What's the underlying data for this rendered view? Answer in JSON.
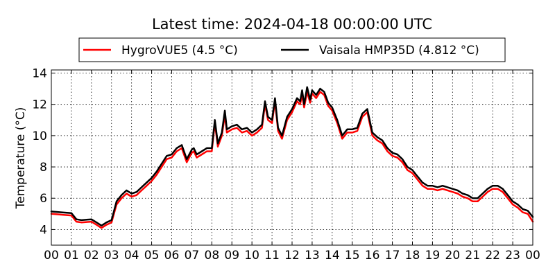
{
  "chart_data": {
    "type": "line",
    "title": "Latest time: 2024-04-18 00:00:00 UTC",
    "xlabel": "",
    "ylabel": "Temperature (°C)",
    "xlim": [
      0,
      24
    ],
    "ylim": [
      3,
      14.2
    ],
    "grid": true,
    "legend_position": "top-center",
    "x_tick_values": [
      0,
      1,
      2,
      3,
      4,
      5,
      6,
      7,
      8,
      9,
      10,
      11,
      12,
      13,
      14,
      15,
      16,
      17,
      18,
      19,
      20,
      21,
      22,
      23,
      24
    ],
    "x_tick_labels": [
      "00",
      "01",
      "02",
      "03",
      "04",
      "05",
      "06",
      "07",
      "08",
      "09",
      "10",
      "11",
      "12",
      "13",
      "14",
      "15",
      "16",
      "17",
      "18",
      "19",
      "20",
      "21",
      "22",
      "23",
      "00"
    ],
    "y_tick_values": [
      4,
      6,
      8,
      10,
      12,
      14
    ],
    "y_tick_labels": [
      "4",
      "6",
      "8",
      "10",
      "12",
      "14"
    ],
    "x": [
      0,
      0.5,
      1,
      1.25,
      1.5,
      2,
      2.25,
      2.5,
      2.75,
      3,
      3.25,
      3.5,
      3.75,
      4,
      4.25,
      4.5,
      4.75,
      5,
      5.25,
      5.5,
      5.75,
      6,
      6.25,
      6.5,
      6.75,
      7,
      7.1,
      7.25,
      7.5,
      7.75,
      8,
      8.15,
      8.3,
      8.5,
      8.65,
      8.75,
      9,
      9.25,
      9.5,
      9.75,
      10,
      10.25,
      10.5,
      10.65,
      10.8,
      11,
      11.15,
      11.3,
      11.5,
      11.75,
      12,
      12.25,
      12.4,
      12.5,
      12.6,
      12.75,
      12.9,
      13,
      13.2,
      13.4,
      13.6,
      13.8,
      14,
      14.25,
      14.5,
      14.75,
      15,
      15.25,
      15.5,
      15.75,
      16,
      16.25,
      16.5,
      16.75,
      17,
      17.25,
      17.5,
      17.75,
      18,
      18.25,
      18.5,
      18.75,
      19,
      19.25,
      19.5,
      19.75,
      20,
      20.25,
      20.5,
      20.75,
      21,
      21.25,
      21.5,
      21.75,
      22,
      22.25,
      22.5,
      22.75,
      23,
      23.25,
      23.5,
      23.75,
      24
    ],
    "series": [
      {
        "name": "HygroVUE5 (4.5 °C)",
        "color": "#ff0000",
        "values": [
          5.0,
          4.95,
          4.9,
          4.5,
          4.45,
          4.5,
          4.3,
          4.1,
          4.3,
          4.45,
          5.6,
          6.0,
          6.3,
          6.1,
          6.2,
          6.5,
          6.8,
          7.1,
          7.5,
          8.0,
          8.5,
          8.6,
          9.0,
          9.2,
          8.3,
          8.9,
          9.0,
          8.6,
          8.8,
          9.0,
          9.0,
          10.8,
          9.3,
          10.0,
          11.3,
          10.2,
          10.4,
          10.5,
          10.2,
          10.3,
          10.0,
          10.2,
          10.5,
          12.0,
          11.0,
          10.8,
          12.2,
          10.3,
          9.8,
          11.0,
          11.5,
          12.2,
          12.0,
          12.6,
          11.8,
          12.8,
          12.1,
          12.7,
          12.4,
          12.8,
          12.6,
          11.9,
          11.6,
          10.8,
          9.8,
          10.2,
          10.2,
          10.3,
          11.2,
          11.5,
          10.0,
          9.7,
          9.5,
          9.0,
          8.7,
          8.6,
          8.3,
          7.8,
          7.6,
          7.2,
          6.8,
          6.6,
          6.6,
          6.5,
          6.6,
          6.5,
          6.4,
          6.3,
          6.1,
          6.0,
          5.8,
          5.8,
          6.1,
          6.4,
          6.6,
          6.6,
          6.4,
          6.0,
          5.6,
          5.4,
          5.1,
          5.0,
          4.5
        ]
      },
      {
        "name": "Vaisala HMP35D (4.812 °C)",
        "color": "#000000",
        "values": [
          5.15,
          5.1,
          5.05,
          4.65,
          4.6,
          4.65,
          4.45,
          4.25,
          4.45,
          4.6,
          5.8,
          6.2,
          6.5,
          6.3,
          6.4,
          6.7,
          7.0,
          7.3,
          7.7,
          8.2,
          8.7,
          8.8,
          9.2,
          9.4,
          8.5,
          9.1,
          9.2,
          8.8,
          9.0,
          9.2,
          9.2,
          11.0,
          9.5,
          10.2,
          11.6,
          10.4,
          10.6,
          10.7,
          10.4,
          10.5,
          10.2,
          10.4,
          10.7,
          12.2,
          11.2,
          11.0,
          12.4,
          10.5,
          10.0,
          11.2,
          11.7,
          12.4,
          12.2,
          12.9,
          12.0,
          13.1,
          12.3,
          12.9,
          12.6,
          13.0,
          12.8,
          12.1,
          11.8,
          11.0,
          10.0,
          10.4,
          10.4,
          10.5,
          11.4,
          11.7,
          10.2,
          9.9,
          9.7,
          9.2,
          8.9,
          8.8,
          8.5,
          8.0,
          7.8,
          7.4,
          7.0,
          6.8,
          6.8,
          6.7,
          6.8,
          6.7,
          6.6,
          6.5,
          6.3,
          6.2,
          6.0,
          6.0,
          6.3,
          6.6,
          6.8,
          6.8,
          6.6,
          6.2,
          5.8,
          5.6,
          5.3,
          5.2,
          4.8
        ]
      }
    ]
  }
}
